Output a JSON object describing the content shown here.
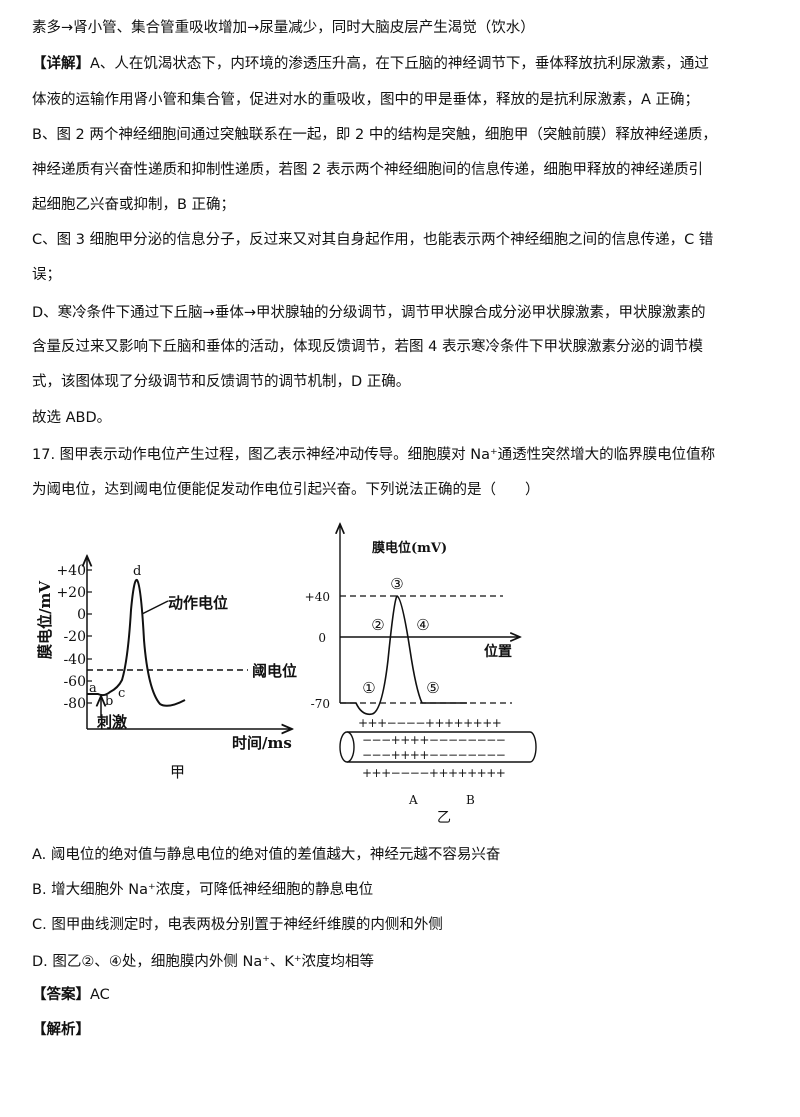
{
  "lines": [
    "素多→肾小管、集合管重吸收增加→尿量减少，同时大脑皮层产生渴觉（饮水）",
    "A、人在饥渴状态下，内环境的渗透压升高，在下丘脑的神经调节下，垂体释放抗利尿激素，通过",
    "体液的运输作用肾小管和集合管，促进对水的重吸收，图中的甲是垂体，释放的是抗利尿激素，A 正确；",
    "B、图 2 两个神经细胞间通过突触联系在一起，即 2 中的结构是突触，细胞甲（突触前膜）释放神经递质，",
    "神经递质有兴奋性递质和抑制性递质，若图 2 表示两个神经细胞间的信息传递，细胞甲释放的神经递质引",
    "起细胞乙兴奋或抑制，B 正确；",
    "C、图 3 细胞甲分泌的信息分子，反过来又对其自身起作用，也能表示两个神经细胞之间的信息传递，C 错",
    "误；",
    "D、寒冷条件下通过下丘脑→垂体→甲状腺轴的分级调节，调节甲状腺合成分泌甲状腺激素，甲状腺激素的",
    "含量反过来又影响下丘脑和垂体的活动，体现反馈调节，若图 4 表示寒冷条件下甲状腺激素分泌的调节模",
    "式，该图体现了分级调节和反馈调节的调节机制，D 正确。",
    "故选 ABD。",
    "17. 图甲表示动作电位产生过程，图乙表示神经冲动传导。细胞膜对 Na⁺通透性突然增大的临界膜电位值称",
    "为阈电位，达到阈电位便能促发动作电位引起兴奋。下列说法正确的是（　　）"
  ],
  "detail_tag": "【详解】",
  "figure": {
    "jia": {
      "ylabel": "膜电位/mV",
      "yticks": [
        "+40",
        "+20",
        "0",
        "-20",
        "-40",
        "-60",
        "-80"
      ],
      "xlabel": "时间/ms",
      "points": {
        "a": "a",
        "b": "b",
        "c": "c",
        "d": "d"
      },
      "curve_label": "动作电位",
      "threshold_label": "阈电位",
      "stimulus_label": "刺激",
      "caption": "甲"
    },
    "yi": {
      "ylabel": "膜电位(mV)",
      "yticks": [
        "+40",
        "0",
        "-70"
      ],
      "xlabel": "位置",
      "markers": [
        "①",
        "②",
        "③",
        "④",
        "⑤"
      ],
      "charge_outer": "+++−−−−++++++++",
      "charge_inner": "−−−++++−−−−−−−−",
      "point_a": "A",
      "point_b": "B",
      "caption": "乙"
    }
  },
  "options": [
    "A. 阈电位的绝对值与静息电位的绝对值的差值越大，神经元越不容易兴奋",
    "B. 增大细胞外 Na⁺浓度，可降低神经细胞的静息电位",
    "C. 图甲曲线测定时，电表两极分别置于神经纤维膜的内侧和外侧",
    "D. 图乙②、④处，细胞膜内外侧 Na⁺、K⁺浓度均相等"
  ],
  "answer_tag": "【答案】",
  "answer": "AC",
  "analysis_tag": "【解析】"
}
